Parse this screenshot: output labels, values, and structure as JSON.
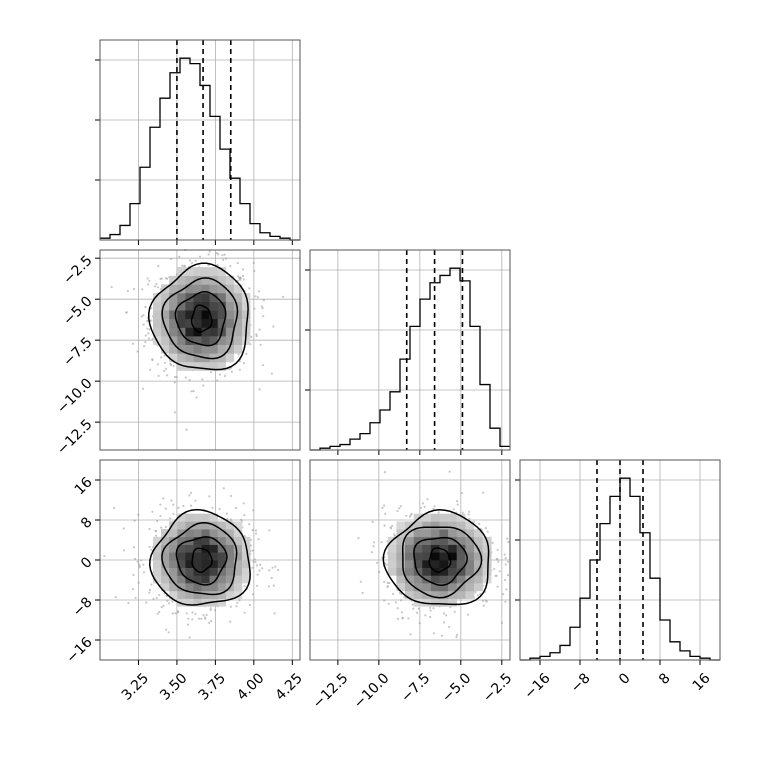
{
  "chart_data": {
    "type": "corner",
    "parameters": [
      {
        "tick_labels": [
          "3.25",
          "3.50",
          "3.75",
          "4.00",
          "4.25"
        ],
        "ticks": [
          3.25,
          3.5,
          3.75,
          4.0,
          4.25
        ],
        "range": [
          3.0,
          4.3
        ],
        "quantiles": [
          3.5,
          3.67,
          3.85
        ]
      },
      {
        "tick_labels": [
          "−12.5",
          "−10.0",
          "−7.5",
          "−5.0",
          "−2.5"
        ],
        "ticks": [
          -12.5,
          -10.0,
          -7.5,
          -5.0,
          -2.5
        ],
        "range": [
          -14.2,
          -2.0
        ],
        "quantiles": [
          -8.3,
          -6.6,
          -4.9
        ]
      },
      {
        "tick_labels": [
          "−16",
          "−8",
          "0",
          "8",
          "16"
        ],
        "ticks": [
          -16,
          -8,
          0,
          8,
          16
        ],
        "range": [
          -20,
          20
        ],
        "quantiles": [
          -4.6,
          0.0,
          4.6
        ]
      }
    ],
    "marginals": [
      {
        "bin_edges": [
          3.0,
          3.065,
          3.13,
          3.195,
          3.26,
          3.325,
          3.39,
          3.455,
          3.52,
          3.585,
          3.65,
          3.715,
          3.78,
          3.845,
          3.91,
          3.975,
          4.04,
          4.105,
          4.17,
          4.235,
          4.3
        ],
        "counts": [
          1,
          3,
          8,
          20,
          40,
          62,
          78,
          92,
          100,
          97,
          85,
          68,
          50,
          34,
          20,
          9,
          4,
          2,
          1,
          0
        ],
        "ylim": [
          0,
          110
        ]
      },
      {
        "bin_edges": [
          -14.2,
          -13.59,
          -12.98,
          -12.37,
          -11.76,
          -11.15,
          -10.54,
          -9.93,
          -9.32,
          -8.71,
          -8.1,
          -7.49,
          -6.88,
          -6.27,
          -5.66,
          -5.05,
          -4.44,
          -3.83,
          -3.22,
          -2.61,
          -2.0
        ],
        "counts": [
          0,
          1,
          2,
          3,
          6,
          9,
          15,
          22,
          32,
          50,
          68,
          83,
          92,
          96,
          100,
          93,
          68,
          36,
          12,
          2
        ],
        "ylim": [
          0,
          110
        ]
      },
      {
        "bin_edges": [
          -20,
          -18,
          -16,
          -14,
          -12,
          -10,
          -8,
          -6,
          -4,
          -2,
          0,
          2,
          4,
          6,
          8,
          10,
          12,
          14,
          16,
          18,
          20
        ],
        "counts": [
          0,
          1,
          2,
          4,
          8,
          18,
          34,
          55,
          75,
          90,
          100,
          90,
          70,
          45,
          22,
          10,
          5,
          2,
          1,
          0
        ],
        "ylim": [
          0,
          110
        ]
      }
    ],
    "joint": [
      {
        "x_param": 0,
        "y_param": 1,
        "mean": [
          3.66,
          -6.2
        ],
        "sigma": [
          0.16,
          1.6
        ]
      },
      {
        "x_param": 0,
        "y_param": 2,
        "mean": [
          3.66,
          0.0
        ],
        "sigma": [
          0.16,
          4.7
        ]
      },
      {
        "x_param": 1,
        "y_param": 2,
        "mean": [
          -6.3,
          0.0
        ],
        "sigma": [
          1.6,
          4.7
        ]
      }
    ],
    "grid": true,
    "colors": {
      "line": "#000000",
      "grid": "#b0b0b0",
      "frame": "#555555",
      "points": "#999999"
    }
  }
}
